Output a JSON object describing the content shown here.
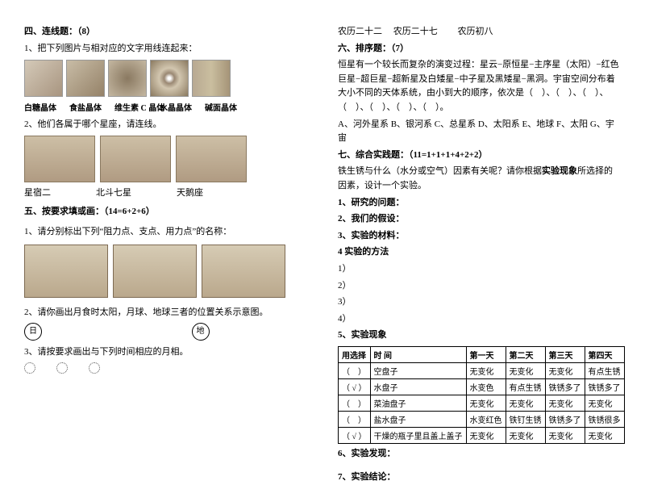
{
  "left": {
    "sec4_title": "四、连线题：（8）",
    "q1": "1、把下列图片与相对应的文字用线连起来：",
    "crystals": [
      "白糖晶体",
      "食盐晶体",
      "维生素 C 晶体",
      "水晶晶体",
      "碱面晶体"
    ],
    "q2": "2、他们各属于哪个星座，请连线。",
    "const_labels": [
      "星宿二",
      "北斗七星",
      "天鹅座"
    ],
    "sec5_title": "五、按要求填或画：（14=6+2+6）",
    "q5_1": "1、请分别标出下列“阻力点、支点、用力点”的名称：",
    "q5_2": "2、请你画出月食时太阳，月球、地球三者的位置关系示意图。",
    "sun": "日",
    "earth": "地",
    "q5_3": "3、请按要求画出与下列时间相应的月相。"
  },
  "right": {
    "lunar": [
      "农历二十二",
      "农历二十七",
      "农历初八"
    ],
    "sec6_title": "六、排序题：（7）",
    "sec6_p1": "恒星有一个较长而复杂的演变过程：星云−原恒星−主序星（太阳）−红色巨星−超巨星−超新星及白矮星−中子星及黑矮星−黑洞。宇宙空间分布着大小不同的天体系统，由小到大的顺序，依次是（　）、（　）、（　）、（　）、（　）、（　）、（　）。",
    "sec6_opts": "A、河外星系  B、银河系  C、总星系  D、太阳系  E、地球  F、太阳  G、宇宙",
    "sec7_title": "七、综合实践题：（11=1+1+1+4+2+2）",
    "sec7_p": "铁生锈与什么（水分或空气）因素有关呢？请你根据实验现象所选择的因素，设计一个实验。",
    "items": [
      "1、研究的问题：",
      "2、我们的假设：",
      "3、实验的材料：",
      "4 实验的方法"
    ],
    "nums": [
      "1）",
      "2）",
      "3）",
      "4）"
    ],
    "t5": "5、实验现象",
    "table": {
      "head": [
        "用选择",
        "时  间",
        "第一天",
        "第二天",
        "第三天",
        "第四天"
      ],
      "rows": [
        [
          "（　）",
          "空盘子",
          "无变化",
          "无变化",
          "无变化",
          "有点生锈"
        ],
        [
          "（ √ ）",
          "水盘子",
          "水变色",
          "有点生锈",
          "铁锈多了",
          "铁锈多了"
        ],
        [
          "（　）",
          "菜油盘子",
          "无变化",
          "无变化",
          "无变化",
          "无变化"
        ],
        [
          "（　）",
          "盐水盘子",
          "水变红色",
          "铁钉生锈",
          "铁锈多了",
          "铁锈很多"
        ],
        [
          "（ √ ）",
          "干燥的瓶子里且盖上盖子",
          "无变化",
          "无变化",
          "无变化",
          "无变化"
        ]
      ]
    },
    "t6": "6、实验发现：",
    "t7": "7、实验结论："
  }
}
